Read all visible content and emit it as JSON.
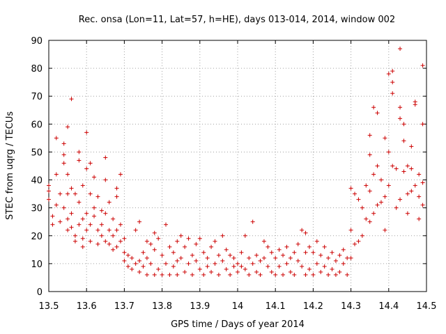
{
  "chart_data": {
    "type": "scatter",
    "title": "Rec. onsa (Lon=11, Lat=57, h=HE), days 013-014, 2014, window 002",
    "xlabel": "GPS time / Days of year 2014",
    "ylabel": "STEC from uqrg / TECUs",
    "xlim": [
      13.5,
      14.5
    ],
    "ylim": [
      0,
      90
    ],
    "xticks": [
      "13.5",
      "13.6",
      "13.7",
      "13.8",
      "13.9",
      "14",
      "14.1",
      "14.2",
      "14.3",
      "14.4",
      "14.5"
    ],
    "yticks": [
      "0",
      "10",
      "20",
      "30",
      "40",
      "50",
      "60",
      "70",
      "80",
      "90"
    ],
    "grid": true,
    "marker": "plus",
    "color": "#cc0000",
    "series": [
      {
        "points": [
          [
            13.5,
            38
          ],
          [
            13.5,
            36
          ],
          [
            13.5,
            33
          ],
          [
            13.51,
            27
          ],
          [
            13.51,
            24
          ],
          [
            13.52,
            42
          ],
          [
            13.52,
            55
          ],
          [
            13.52,
            31
          ],
          [
            13.53,
            25
          ],
          [
            13.53,
            35
          ],
          [
            13.54,
            49
          ],
          [
            13.54,
            46
          ],
          [
            13.54,
            53
          ],
          [
            13.54,
            30
          ],
          [
            13.55,
            59
          ],
          [
            13.55,
            42
          ],
          [
            13.55,
            35
          ],
          [
            13.55,
            26
          ],
          [
            13.55,
            22
          ],
          [
            13.56,
            69
          ],
          [
            13.56,
            37
          ],
          [
            13.56,
            28
          ],
          [
            13.56,
            23
          ],
          [
            13.57,
            35
          ],
          [
            13.57,
            20
          ],
          [
            13.57,
            18
          ],
          [
            13.58,
            50
          ],
          [
            13.58,
            47
          ],
          [
            13.58,
            32
          ],
          [
            13.58,
            24
          ],
          [
            13.59,
            38
          ],
          [
            13.59,
            26
          ],
          [
            13.59,
            19
          ],
          [
            13.59,
            16
          ],
          [
            13.6,
            57
          ],
          [
            13.6,
            44
          ],
          [
            13.6,
            28
          ],
          [
            13.6,
            22
          ],
          [
            13.61,
            46
          ],
          [
            13.61,
            35
          ],
          [
            13.61,
            24
          ],
          [
            13.61,
            18
          ],
          [
            13.62,
            41
          ],
          [
            13.62,
            30
          ],
          [
            13.62,
            27
          ],
          [
            13.63,
            34
          ],
          [
            13.63,
            22
          ],
          [
            13.63,
            17
          ],
          [
            13.64,
            29
          ],
          [
            13.64,
            24
          ],
          [
            13.64,
            20
          ],
          [
            13.65,
            48
          ],
          [
            13.65,
            40
          ],
          [
            13.65,
            28
          ],
          [
            13.65,
            18
          ],
          [
            13.66,
            32
          ],
          [
            13.66,
            22
          ],
          [
            13.66,
            17
          ],
          [
            13.67,
            26
          ],
          [
            13.67,
            20
          ],
          [
            13.67,
            15
          ],
          [
            13.68,
            37
          ],
          [
            13.68,
            34
          ],
          [
            13.68,
            22
          ],
          [
            13.68,
            16
          ],
          [
            13.69,
            42
          ],
          [
            13.69,
            24
          ],
          [
            13.69,
            18
          ],
          [
            13.7,
            19
          ],
          [
            13.7,
            14
          ],
          [
            13.7,
            11
          ],
          [
            13.71,
            13
          ],
          [
            13.71,
            9
          ],
          [
            13.72,
            12
          ],
          [
            13.72,
            8
          ],
          [
            13.73,
            22
          ],
          [
            13.73,
            10
          ],
          [
            13.74,
            25
          ],
          [
            13.74,
            11
          ],
          [
            13.74,
            7
          ],
          [
            13.75,
            14
          ],
          [
            13.75,
            9
          ],
          [
            13.76,
            18
          ],
          [
            13.76,
            12
          ],
          [
            13.76,
            6
          ],
          [
            13.77,
            17
          ],
          [
            13.77,
            10
          ],
          [
            13.78,
            21
          ],
          [
            13.78,
            15
          ],
          [
            13.78,
            6
          ],
          [
            13.79,
            19
          ],
          [
            13.79,
            8
          ],
          [
            13.8,
            13
          ],
          [
            13.8,
            6
          ],
          [
            13.81,
            24
          ],
          [
            13.81,
            10
          ],
          [
            13.82,
            16
          ],
          [
            13.82,
            6
          ],
          [
            13.83,
            14
          ],
          [
            13.83,
            9
          ],
          [
            13.84,
            18
          ],
          [
            13.84,
            11
          ],
          [
            13.84,
            6
          ],
          [
            13.85,
            20
          ],
          [
            13.85,
            12
          ],
          [
            13.86,
            16
          ],
          [
            13.86,
            7
          ],
          [
            13.87,
            19
          ],
          [
            13.87,
            10
          ],
          [
            13.88,
            13
          ],
          [
            13.88,
            6
          ],
          [
            13.89,
            17
          ],
          [
            13.89,
            11
          ],
          [
            13.9,
            19
          ],
          [
            13.9,
            8
          ],
          [
            13.91,
            14
          ],
          [
            13.91,
            6
          ],
          [
            13.92,
            12
          ],
          [
            13.92,
            9
          ],
          [
            13.93,
            16
          ],
          [
            13.93,
            7
          ],
          [
            13.94,
            18
          ],
          [
            13.94,
            10
          ],
          [
            13.95,
            13
          ],
          [
            13.95,
            6
          ],
          [
            13.96,
            20
          ],
          [
            13.96,
            11
          ],
          [
            13.97,
            15
          ],
          [
            13.97,
            8
          ],
          [
            13.98,
            13
          ],
          [
            13.98,
            6
          ],
          [
            13.99,
            12
          ],
          [
            13.99,
            9
          ],
          [
            14.0,
            10
          ],
          [
            14.0,
            7
          ],
          [
            14.01,
            14
          ],
          [
            14.01,
            9
          ],
          [
            14.02,
            20
          ],
          [
            14.02,
            8
          ],
          [
            14.03,
            12
          ],
          [
            14.03,
            6
          ],
          [
            14.04,
            25
          ],
          [
            14.04,
            10
          ],
          [
            14.05,
            13
          ],
          [
            14.05,
            7
          ],
          [
            14.06,
            11
          ],
          [
            14.06,
            6
          ],
          [
            14.07,
            18
          ],
          [
            14.07,
            12
          ],
          [
            14.08,
            16
          ],
          [
            14.08,
            9
          ],
          [
            14.09,
            14
          ],
          [
            14.09,
            7
          ],
          [
            14.1,
            12
          ],
          [
            14.1,
            6
          ],
          [
            14.11,
            15
          ],
          [
            14.11,
            9
          ],
          [
            14.12,
            13
          ],
          [
            14.12,
            6
          ],
          [
            14.13,
            16
          ],
          [
            14.13,
            10
          ],
          [
            14.14,
            12
          ],
          [
            14.14,
            7
          ],
          [
            14.15,
            14
          ],
          [
            14.15,
            6
          ],
          [
            14.16,
            17
          ],
          [
            14.16,
            11
          ],
          [
            14.17,
            22
          ],
          [
            14.17,
            9
          ],
          [
            14.18,
            21
          ],
          [
            14.18,
            14
          ],
          [
            14.18,
            6
          ],
          [
            14.19,
            16
          ],
          [
            14.19,
            8
          ],
          [
            14.2,
            14
          ],
          [
            14.2,
            6
          ],
          [
            14.21,
            18
          ],
          [
            14.21,
            10
          ],
          [
            14.22,
            13
          ],
          [
            14.22,
            7
          ],
          [
            14.23,
            16
          ],
          [
            14.23,
            9
          ],
          [
            14.24,
            12
          ],
          [
            14.24,
            6
          ],
          [
            14.25,
            14
          ],
          [
            14.25,
            8
          ],
          [
            14.26,
            11
          ],
          [
            14.26,
            6
          ],
          [
            14.27,
            13
          ],
          [
            14.27,
            7
          ],
          [
            14.28,
            15
          ],
          [
            14.28,
            10
          ],
          [
            14.29,
            12
          ],
          [
            14.29,
            6
          ],
          [
            14.3,
            37
          ],
          [
            14.3,
            22
          ],
          [
            14.3,
            12
          ],
          [
            14.31,
            35
          ],
          [
            14.31,
            17
          ],
          [
            14.32,
            33
          ],
          [
            14.32,
            18
          ],
          [
            14.33,
            30
          ],
          [
            14.33,
            20
          ],
          [
            14.34,
            38
          ],
          [
            14.34,
            26
          ],
          [
            14.35,
            56
          ],
          [
            14.35,
            49
          ],
          [
            14.35,
            36
          ],
          [
            14.35,
            25
          ],
          [
            14.36,
            66
          ],
          [
            14.36,
            42
          ],
          [
            14.36,
            28
          ],
          [
            14.37,
            64
          ],
          [
            14.37,
            45
          ],
          [
            14.37,
            31
          ],
          [
            14.38,
            40
          ],
          [
            14.38,
            32
          ],
          [
            14.39,
            55
          ],
          [
            14.39,
            34
          ],
          [
            14.39,
            22
          ],
          [
            14.4,
            78
          ],
          [
            14.4,
            50
          ],
          [
            14.4,
            38
          ],
          [
            14.41,
            79
          ],
          [
            14.41,
            75
          ],
          [
            14.41,
            71
          ],
          [
            14.41,
            45
          ],
          [
            14.42,
            44
          ],
          [
            14.42,
            30
          ],
          [
            14.43,
            87
          ],
          [
            14.43,
            66
          ],
          [
            14.43,
            62
          ],
          [
            14.43,
            33
          ],
          [
            14.44,
            60
          ],
          [
            14.44,
            54
          ],
          [
            14.44,
            43
          ],
          [
            14.45,
            45
          ],
          [
            14.45,
            35
          ],
          [
            14.45,
            28
          ],
          [
            14.46,
            52
          ],
          [
            14.46,
            44
          ],
          [
            14.46,
            36
          ],
          [
            14.47,
            68
          ],
          [
            14.47,
            67
          ],
          [
            14.47,
            38
          ],
          [
            14.48,
            42
          ],
          [
            14.48,
            34
          ],
          [
            14.48,
            26
          ],
          [
            14.49,
            81
          ],
          [
            14.49,
            60
          ],
          [
            14.49,
            39
          ],
          [
            14.49,
            31
          ]
        ]
      }
    ]
  }
}
